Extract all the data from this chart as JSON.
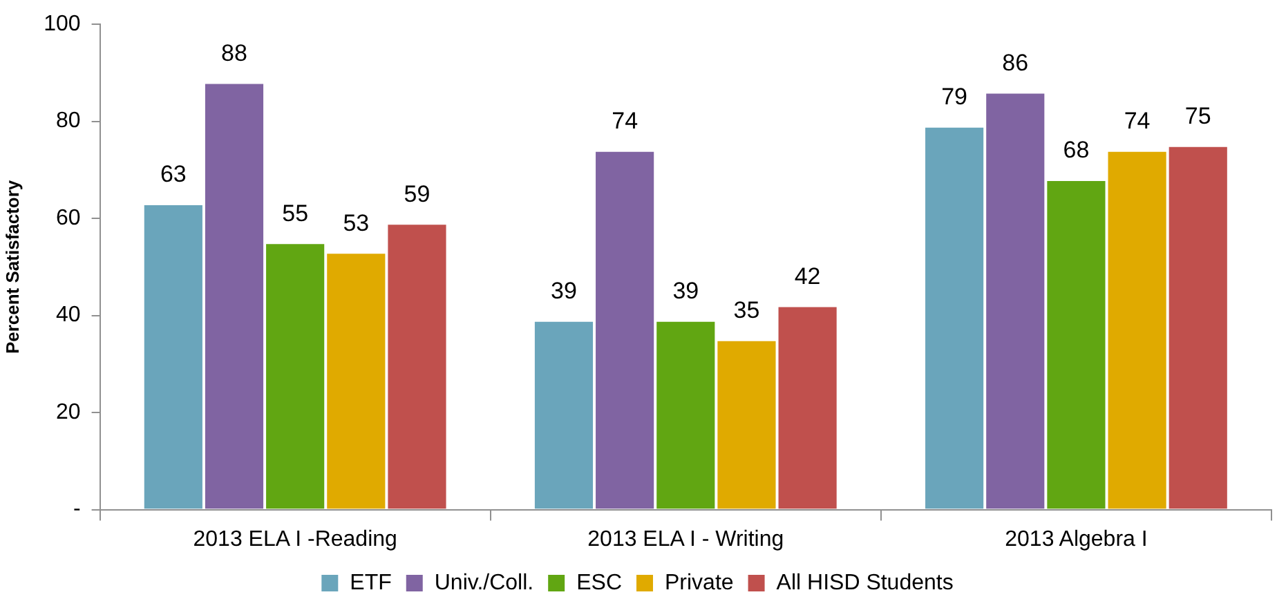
{
  "chart_data": {
    "type": "bar",
    "ylabel": "Percent Satisfactory",
    "categories": [
      "2013 ELA I -Reading",
      "2013 ELA I - Writing",
      "2013 Algebra I"
    ],
    "series": [
      {
        "name": "ETF",
        "color": "#6aa5bb",
        "values": [
          63,
          39,
          79
        ]
      },
      {
        "name": "Univ./Coll.",
        "color": "#8064a2",
        "values": [
          88,
          74,
          86
        ]
      },
      {
        "name": "ESC",
        "color": "#61a612",
        "values": [
          55,
          39,
          68
        ]
      },
      {
        "name": "Private",
        "color": "#e0aa00",
        "values": [
          53,
          35,
          74
        ]
      },
      {
        "name": "All HISD Students",
        "color": "#c0504d",
        "values": [
          59,
          42,
          75
        ]
      }
    ],
    "ylim": [
      0,
      100
    ],
    "yticks": [
      {
        "value": 0,
        "label": "-"
      },
      20,
      40,
      60,
      80,
      100
    ],
    "legend": "bottom",
    "data_labels": true
  }
}
